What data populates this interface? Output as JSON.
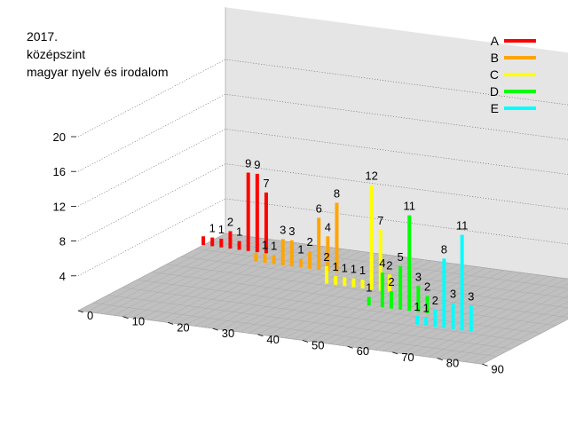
{
  "chart_data": {
    "type": "bar",
    "title_lines": [
      "2017.",
      "középszint",
      "magyar nyelv és irodalom"
    ],
    "z_ticks": [
      "4",
      "8",
      "12",
      "16",
      "20"
    ],
    "x_ticks": [
      "0",
      "10",
      "20",
      "30",
      "40",
      "50",
      "60",
      "70",
      "80",
      "90"
    ],
    "series": [
      {
        "name": "A",
        "color": "#ff0000",
        "bars": [
          {
            "x": 0,
            "v": 1,
            "label": ""
          },
          {
            "x": 2,
            "v": 1,
            "label": "1"
          },
          {
            "x": 4,
            "v": 1,
            "label": "1"
          },
          {
            "x": 6,
            "v": 2,
            "label": "2"
          },
          {
            "x": 8,
            "v": 1,
            "label": "1"
          },
          {
            "x": 10,
            "v": 9,
            "label": "9"
          },
          {
            "x": 12,
            "v": 9,
            "label": "9"
          },
          {
            "x": 14,
            "v": 7,
            "label": "7"
          }
        ]
      },
      {
        "name": "B",
        "color": "#ffa500",
        "bars": [
          {
            "x": 15,
            "v": 1,
            "label": ""
          },
          {
            "x": 17,
            "v": 1,
            "label": "1"
          },
          {
            "x": 19,
            "v": 1,
            "label": "1"
          },
          {
            "x": 21,
            "v": 3,
            "label": "3"
          },
          {
            "x": 23,
            "v": 3,
            "label": "3"
          },
          {
            "x": 25,
            "v": 1,
            "label": "1"
          },
          {
            "x": 27,
            "v": 2,
            "label": "2"
          },
          {
            "x": 29,
            "v": 6,
            "label": "6"
          },
          {
            "x": 31,
            "v": 4,
            "label": "4"
          },
          {
            "x": 33,
            "v": 8,
            "label": "8"
          }
        ]
      },
      {
        "name": "C",
        "color": "#ffff00",
        "bars": [
          {
            "x": 35,
            "v": 2,
            "label": "2"
          },
          {
            "x": 37,
            "v": 1,
            "label": "1"
          },
          {
            "x": 39,
            "v": 1,
            "label": "1"
          },
          {
            "x": 41,
            "v": 1,
            "label": "1"
          },
          {
            "x": 43,
            "v": 1,
            "label": "1"
          },
          {
            "x": 45,
            "v": 12,
            "label": "12"
          },
          {
            "x": 47,
            "v": 7,
            "label": "7"
          },
          {
            "x": 49,
            "v": 2,
            "label": "2"
          }
        ]
      },
      {
        "name": "D",
        "color": "#00ff00",
        "bars": [
          {
            "x": 50,
            "v": 1,
            "label": "1"
          },
          {
            "x": 53,
            "v": 4,
            "label": "4"
          },
          {
            "x": 55,
            "v": 2,
            "label": "2"
          },
          {
            "x": 57,
            "v": 5,
            "label": "5"
          },
          {
            "x": 59,
            "v": 11,
            "label": "11"
          },
          {
            "x": 61,
            "v": 3,
            "label": "3"
          },
          {
            "x": 63,
            "v": 2,
            "label": "2"
          }
        ]
      },
      {
        "name": "E",
        "color": "#00ffff",
        "bars": [
          {
            "x": 65,
            "v": 1,
            "label": "1"
          },
          {
            "x": 67,
            "v": 1,
            "label": "1"
          },
          {
            "x": 69,
            "v": 2,
            "label": "2"
          },
          {
            "x": 71,
            "v": 8,
            "label": "8"
          },
          {
            "x": 73,
            "v": 3,
            "label": "3"
          },
          {
            "x": 75,
            "v": 11,
            "label": "11"
          },
          {
            "x": 77,
            "v": 3,
            "label": "3"
          }
        ]
      }
    ]
  }
}
